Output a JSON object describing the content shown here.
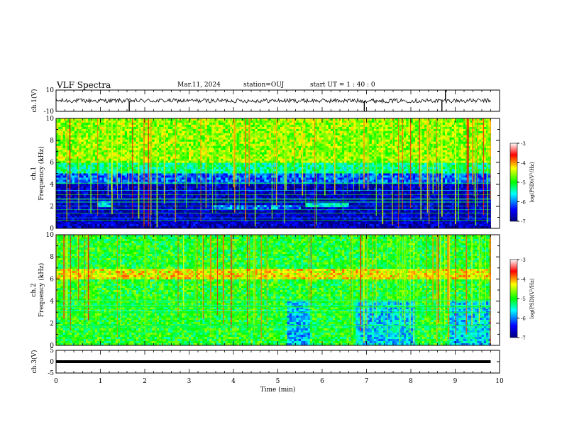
{
  "header": {
    "title": "VLF Spectra",
    "date": "Mar.11, 2024",
    "station": "station=OUJ",
    "start_ut": "start  UT =   1 : 40 : 0"
  },
  "chart_data": [
    {
      "type": "line",
      "panel": "ch1-waveform",
      "ylabel": "ch.1(V)",
      "ylim": [
        -10,
        10
      ],
      "y_tick_labels": [
        "10",
        "-10"
      ],
      "x": [
        0,
        1,
        2,
        3,
        4,
        5,
        6,
        7,
        8,
        9,
        9.8
      ],
      "y": [
        0,
        0,
        0,
        0,
        0,
        0,
        0,
        0,
        0,
        0,
        0
      ],
      "spikes": [
        {
          "x": 1.65,
          "y": -10
        },
        {
          "x": 6.95,
          "y": -10
        },
        {
          "x": 8.7,
          "y": -10
        },
        {
          "x": 8.78,
          "y": 10
        }
      ]
    },
    {
      "type": "heatmap",
      "panel": "ch1-spectrogram",
      "ylabel": "ch.1\nFrequency (kHz)",
      "y_tick_labels": [
        "0",
        "2",
        "4",
        "6",
        "8",
        "10"
      ],
      "ylim": [
        0,
        10
      ],
      "colorbar": {
        "label": "log(PSD)(V²/Hz)",
        "tick_labels": [
          "-3",
          "-4",
          "-5",
          "-6",
          "-7"
        ],
        "range": [
          -7,
          -3
        ]
      },
      "bands": [
        {
          "f_low": 6.0,
          "f_high": 10.0,
          "level": -4.6
        },
        {
          "f_low": 5.0,
          "f_high": 6.0,
          "level": -5.3
        },
        {
          "f_low": 4.0,
          "f_high": 5.0,
          "level": -6.1
        },
        {
          "f_low": 0.0,
          "f_high": 4.0,
          "level": -6.7
        }
      ],
      "features": [
        {
          "t_start": 5.6,
          "t_end": 6.6,
          "f_low": 2.0,
          "f_high": 2.4,
          "level": -5.6
        },
        {
          "t_start": 3.5,
          "t_end": 5.5,
          "f_low": 1.8,
          "f_high": 2.2,
          "level": -6.0
        },
        {
          "t_start": 0.95,
          "t_end": 1.25,
          "f_low": 1.9,
          "f_high": 2.5,
          "level": -5.8
        }
      ]
    },
    {
      "type": "heatmap",
      "panel": "ch2-spectrogram",
      "ylabel": "ch.2\nFrequency (kHz)",
      "y_tick_labels": [
        "0",
        "2",
        "4",
        "6",
        "8",
        "10"
      ],
      "ylim": [
        0,
        10
      ],
      "colorbar": {
        "label": "log(PSD)(V²/Hz)",
        "tick_labels": [
          "-3",
          "-4",
          "-5",
          "-6",
          "-7"
        ],
        "range": [
          -7,
          -3
        ]
      },
      "background_level": -5.0,
      "features": [
        {
          "t_start": 0,
          "t_end": 9.8,
          "f_low": 6.0,
          "f_high": 7.0,
          "level": -4.3
        },
        {
          "t_start": 5.2,
          "t_end": 5.7,
          "f_low": 0,
          "f_high": 4.0,
          "level": -5.8
        },
        {
          "t_start": 6.75,
          "t_end": 8.1,
          "f_low": 0,
          "f_high": 4.0,
          "level": -5.7
        },
        {
          "t_start": 8.85,
          "t_end": 9.8,
          "f_low": 0,
          "f_high": 4.0,
          "level": -5.7
        }
      ]
    },
    {
      "type": "line",
      "panel": "ch3-waveform",
      "ylabel": "ch.3(V)",
      "ylim": [
        -5,
        5
      ],
      "y_tick_labels": [
        "5",
        "0",
        "-5"
      ],
      "x": [
        0,
        9.8
      ],
      "y": [
        0,
        0
      ]
    },
    {
      "type": "axis",
      "panel": "time-axis",
      "xlabel": "Time (min)",
      "xlim": [
        0,
        10
      ],
      "x_tick_labels": [
        "0",
        "1",
        "2",
        "3",
        "4",
        "5",
        "6",
        "7",
        "8",
        "9",
        "10"
      ]
    }
  ]
}
